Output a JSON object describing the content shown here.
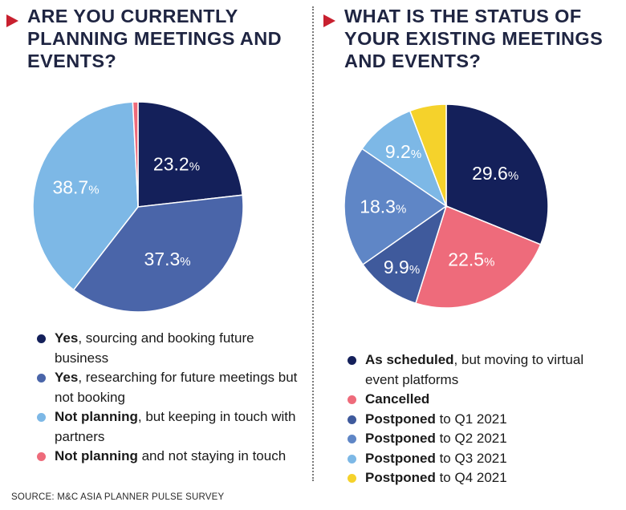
{
  "source": "SOURCE: M&C ASIA PLANNER PULSE SURVEY",
  "colors": {
    "accent": "#c8202f"
  },
  "chart_data": [
    {
      "type": "pie",
      "title": "ARE YOU CURRENTLY\nPLANNING MEETINGS AND\nEVENTS?",
      "unit": "%",
      "slices": [
        {
          "label": "23.2",
          "value": 23.2,
          "color": "#14205a",
          "legend_bold": "Yes",
          "legend_rest": ", sourcing and booking future business"
        },
        {
          "label": "37.3",
          "value": 37.3,
          "color": "#4a65a9",
          "legend_bold": "Yes",
          "legend_rest": ", researching for future meetings but not booking"
        },
        {
          "label": "38.7",
          "value": 38.7,
          "color": "#7db8e6",
          "legend_bold": "Not planning",
          "legend_rest": ", but keeping in touch with partners"
        },
        {
          "label": "",
          "value": 0.8,
          "color": "#ee6b7b",
          "legend_bold": "Not planning",
          "legend_rest": " and not staying in touch"
        }
      ],
      "legend_placement": "bottom"
    },
    {
      "type": "pie",
      "title": "WHAT IS THE STATUS OF\nYOUR EXISTING MEETINGS\nAND EVENTS?",
      "unit": "%",
      "slices": [
        {
          "label": "29.6",
          "value": 29.6,
          "color": "#14205a",
          "legend_bold": "As scheduled",
          "legend_rest": ", but moving to virtual event platforms"
        },
        {
          "label": "22.5",
          "value": 22.5,
          "color": "#ee6b7b",
          "legend_bold": "Cancelled",
          "legend_rest": ""
        },
        {
          "label": "9.9",
          "value": 9.9,
          "color": "#3f5a9c",
          "legend_bold": "Postponed",
          "legend_rest": " to Q1 2021"
        },
        {
          "label": "18.3",
          "value": 18.3,
          "color": "#5f86c6",
          "legend_bold": "Postponed",
          "legend_rest": " to Q2 2021"
        },
        {
          "label": "9.2",
          "value": 9.2,
          "color": "#7db8e6",
          "legend_bold": "Postponed",
          "legend_rest": " to Q3 2021"
        },
        {
          "label": "",
          "value": 5.5,
          "color": "#f5d22b",
          "legend_bold": "Postponed",
          "legend_rest": " to Q4 2021"
        }
      ],
      "legend_placement": "bottom"
    }
  ]
}
